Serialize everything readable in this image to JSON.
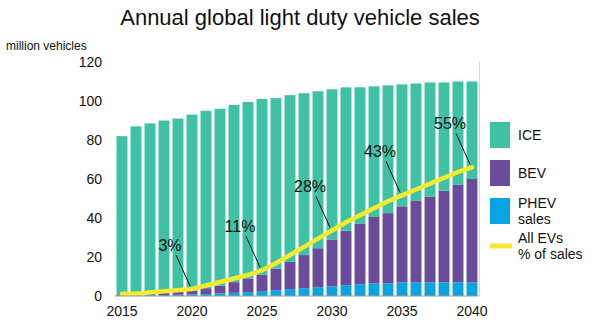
{
  "chart_data": {
    "type": "bar",
    "title": "Annual global light duty vehicle sales",
    "y_label": "million vehicles",
    "categories": [
      "2015",
      null,
      null,
      null,
      null,
      "2020",
      null,
      null,
      null,
      null,
      "2025",
      null,
      null,
      null,
      null,
      "2030",
      null,
      null,
      null,
      null,
      "2035",
      null,
      null,
      null,
      null,
      "2040"
    ],
    "stacked": true,
    "grid": false,
    "legend": "right",
    "ylim": [
      0,
      120
    ],
    "yticks": [
      0,
      20,
      40,
      60,
      80,
      100,
      120
    ],
    "y2lim": [
      0,
      100
    ],
    "series": [
      {
        "name": "ICE",
        "color": "#3fc1a5",
        "values": [
          81.5,
          86.2,
          87.3,
          88.5,
          88.9,
          90.2,
          91,
          90.7,
          90.9,
          90.5,
          90,
          87.5,
          85.5,
          83,
          80.5,
          77,
          73.5,
          70,
          67,
          65.5,
          62.5,
          60,
          58.5,
          55.5,
          53,
          50
        ]
      },
      {
        "name": "BEV",
        "color": "#6b4c9a",
        "values": [
          0.3,
          0.5,
          0.8,
          1,
          1.5,
          2,
          3,
          4,
          5.5,
          7,
          8.5,
          11,
          14,
          17,
          20,
          24,
          28,
          31,
          34,
          36,
          39,
          42,
          44,
          47,
          50,
          53
        ]
      },
      {
        "name": "PHEV sales",
        "color": "#0ba4e2",
        "values": [
          0.2,
          0.3,
          0.4,
          0.5,
          0.6,
          0.8,
          1,
          1.3,
          1.6,
          2,
          2.5,
          3,
          3.5,
          4,
          4.5,
          5,
          5.5,
          6,
          6.5,
          6.5,
          7,
          7,
          7,
          7,
          7,
          7
        ]
      },
      {
        "name": "All EVs % of sales",
        "type": "line",
        "axis": "y2",
        "color": "#f4ea2e",
        "data_labels": true,
        "values": [
          1,
          1,
          1.5,
          2,
          2.5,
          3,
          4.5,
          6,
          7.5,
          9,
          11,
          14,
          17.5,
          21,
          24.5,
          28,
          31.5,
          34.5,
          37.5,
          40.5,
          43,
          45.5,
          48,
          50.5,
          53,
          55
        ],
        "value_labels": [
          null,
          null,
          null,
          null,
          null,
          "3%",
          null,
          null,
          null,
          null,
          "11%",
          null,
          null,
          null,
          null,
          "28%",
          null,
          null,
          null,
          null,
          "43%",
          null,
          null,
          null,
          null,
          "55%"
        ]
      }
    ]
  }
}
